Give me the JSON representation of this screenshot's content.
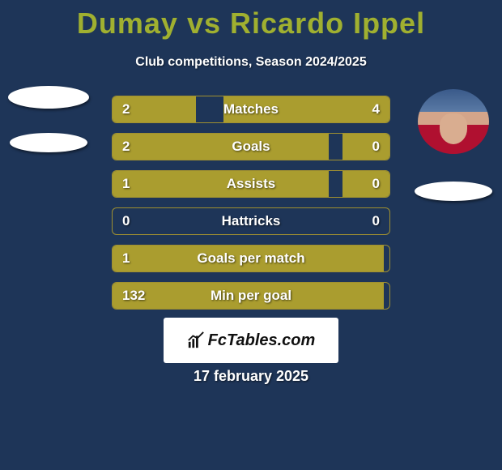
{
  "title": {
    "player1": "Dumay",
    "vs": "vs",
    "player2": "Ricardo Ippel",
    "color": "#a0b030"
  },
  "subtitle": "Club competitions, Season 2024/2025",
  "background_color": "#1e3558",
  "bar_fill_color": "#aa9d2f",
  "bar_border_color": "#a09030",
  "bars": [
    {
      "label": "Matches",
      "left_value": "2",
      "right_value": "4",
      "left_pct": 30,
      "right_pct": 60,
      "right_fill": true
    },
    {
      "label": "Goals",
      "left_value": "2",
      "right_value": "0",
      "left_pct": 78,
      "right_pct": 17,
      "right_fill": true
    },
    {
      "label": "Assists",
      "left_value": "1",
      "right_value": "0",
      "left_pct": 78,
      "right_pct": 17,
      "right_fill": true
    },
    {
      "label": "Hattricks",
      "left_value": "0",
      "right_value": "0",
      "left_pct": 0,
      "right_pct": 0,
      "right_fill": false
    },
    {
      "label": "Goals per match",
      "left_value": "1",
      "right_value": "",
      "left_pct": 98,
      "right_pct": 0,
      "right_fill": false
    },
    {
      "label": "Min per goal",
      "left_value": "132",
      "right_value": "",
      "left_pct": 98,
      "right_pct": 0,
      "right_fill": false
    }
  ],
  "logo_text": "FcTables.com",
  "date": "17 february 2025"
}
